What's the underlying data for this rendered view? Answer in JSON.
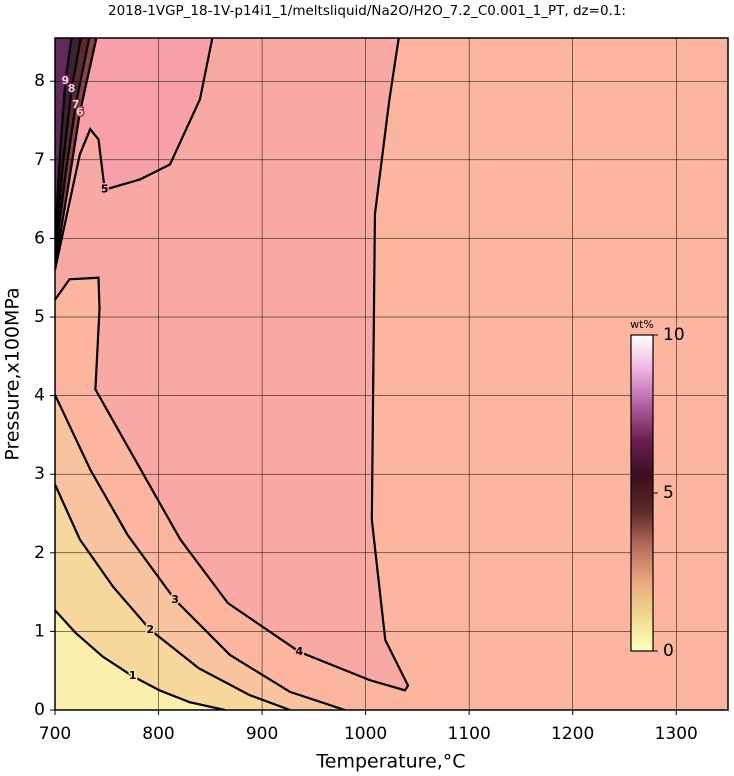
{
  "chart_data": {
    "type": "contour",
    "title": "2018-1VGP_18-1V-p14i1_1/meltsliquid/Na2O/H2O_7.2_C0.001_1_PT, dz=0.1:",
    "x_label": "Temperature,°C",
    "y_label": "Pressure,x100MPa",
    "xlim": [
      700,
      1350
    ],
    "ylim": [
      0,
      8.55
    ],
    "xticks": [
      700,
      800,
      900,
      1000,
      1100,
      1200,
      1300
    ],
    "yticks": [
      0,
      1,
      2,
      3,
      4,
      5,
      6,
      7,
      8
    ],
    "grid": true,
    "background": "#fcb6a0",
    "contours": [
      {
        "level": 4,
        "color": "#f9a9a4",
        "x": [
          700,
          714,
          742,
          743,
          739,
          772,
          821,
          867,
          936,
          1004,
          1038,
          1041,
          1019,
          1006,
          1009,
          1023,
          1032
        ],
        "y": [
          5.22,
          5.48,
          5.5,
          5.1,
          4.08,
          3.31,
          2.17,
          1.36,
          0.74,
          0.38,
          0.25,
          0.31,
          0.89,
          2.42,
          6.31,
          7.77,
          8.55
        ]
      },
      {
        "level": 5,
        "color": "#f7a0aa",
        "x": [
          852,
          840,
          811,
          782,
          748,
          742,
          734,
          724,
          700
        ],
        "y": [
          8.55,
          7.77,
          6.94,
          6.75,
          6.62,
          7.26,
          7.39,
          7.07,
          5.6
        ]
      },
      {
        "level": 6,
        "color": "#8a4048",
        "x": [
          700,
          712,
          724,
          740
        ],
        "y": [
          5.65,
          6.6,
          7.6,
          8.55
        ]
      },
      {
        "level": 7,
        "color": "#5a2a34",
        "x": [
          700,
          710,
          720,
          733
        ],
        "y": [
          5.75,
          6.8,
          7.7,
          8.55
        ]
      },
      {
        "level": 8,
        "color": "#402033",
        "x": [
          700,
          708,
          716,
          725
        ],
        "y": [
          5.85,
          7.0,
          7.9,
          8.55
        ]
      },
      {
        "level": 9,
        "color": "#5e2a58",
        "x": [
          700,
          705,
          710,
          716
        ],
        "y": [
          6.0,
          7.1,
          8.0,
          8.55
        ]
      },
      {
        "level": 3,
        "color": "#f8c4a0",
        "x": [
          700,
          734,
          770,
          816,
          869,
          927,
          980
        ],
        "y": [
          4.01,
          3.06,
          2.23,
          1.4,
          0.7,
          0.23,
          0
        ]
      },
      {
        "level": 2,
        "color": "#f6d79c",
        "x": [
          700,
          724,
          756,
          792,
          839,
          888,
          927
        ],
        "y": [
          2.87,
          2.17,
          1.57,
          1.02,
          0.53,
          0.19,
          0
        ]
      },
      {
        "level": 1,
        "color": "#fbefac",
        "x": [
          700,
          720,
          746,
          775,
          801,
          830,
          864
        ],
        "y": [
          1.27,
          0.98,
          0.68,
          0.43,
          0.25,
          0.1,
          0
        ]
      }
    ],
    "colorbar": {
      "label": "wt%",
      "clim": [
        0,
        10
      ],
      "ticks": [
        0,
        5,
        10
      ],
      "colormap": [
        "#ffffc0",
        "#f0d890",
        "#e8a880",
        "#b86a5a",
        "#5a2a28",
        "#3a1020",
        "#6a2050",
        "#b060a0",
        "#f0b0e0",
        "#ffffff"
      ]
    }
  }
}
